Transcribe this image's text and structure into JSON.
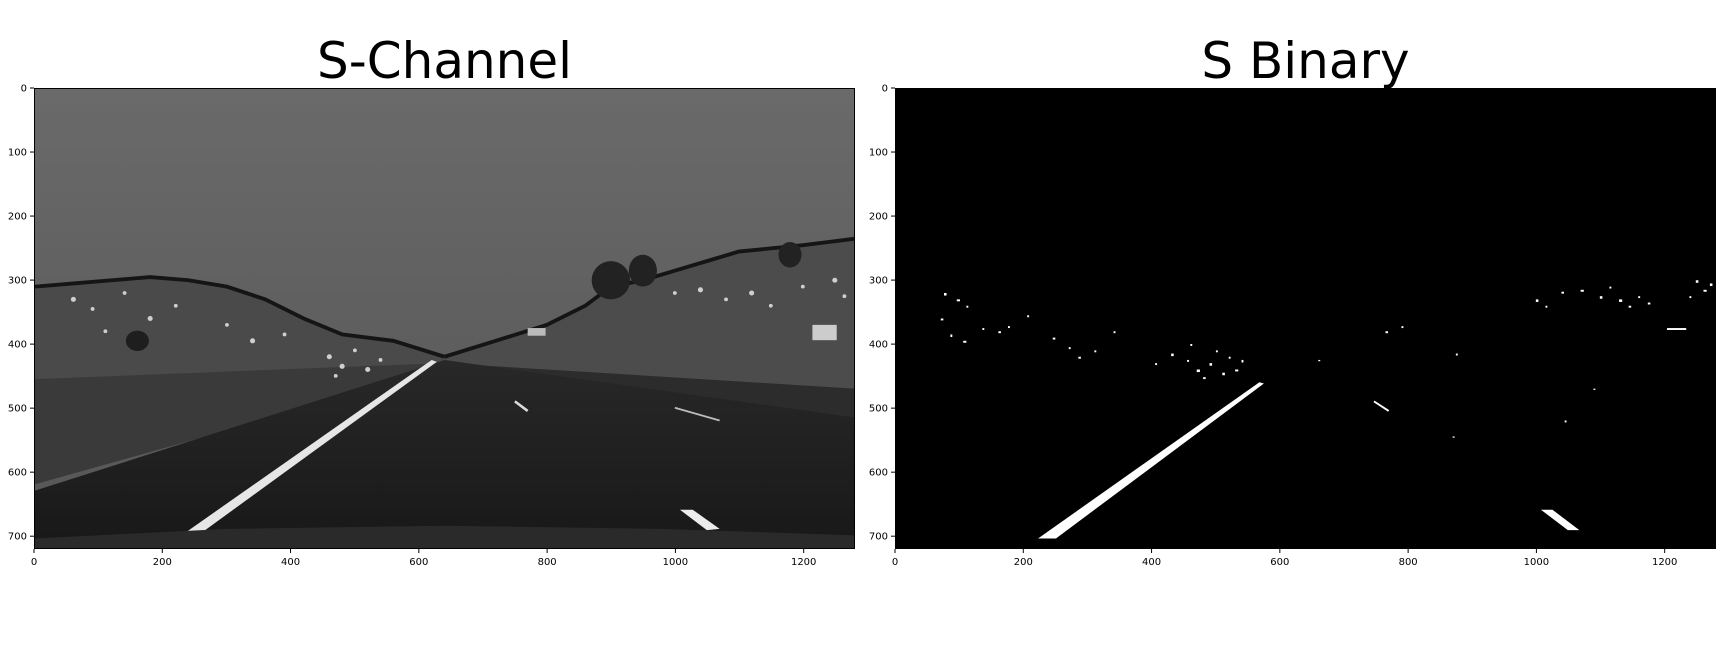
{
  "panels": {
    "left": {
      "title": "S-Channel",
      "image": "grayscale road image, s-channel",
      "x_ticks": [
        "0",
        "200",
        "400",
        "600",
        "800",
        "1000",
        "1200"
      ],
      "y_ticks": [
        "0",
        "100",
        "200",
        "300",
        "400",
        "500",
        "600",
        "700"
      ]
    },
    "right": {
      "title": "S Binary",
      "image": "black and white binary road mask",
      "x_ticks": [
        "0",
        "200",
        "400",
        "600",
        "800",
        "1000",
        "1200"
      ],
      "y_ticks": [
        "0",
        "100",
        "200",
        "300",
        "400",
        "500",
        "600",
        "700"
      ]
    }
  },
  "axis": {
    "xlim": [
      0,
      1280
    ],
    "ylim": [
      720,
      0
    ],
    "x_tick_values": [
      0,
      200,
      400,
      600,
      800,
      1000,
      1200
    ],
    "y_tick_values": [
      0,
      100,
      200,
      300,
      400,
      500,
      600,
      700
    ]
  },
  "colors": {
    "background": "#ffffff",
    "binary_bg": "#000000",
    "binary_fg": "#ffffff",
    "sky": "#5a5a5a",
    "road": "#1e1e1e",
    "shoulder": "#2a2a2a"
  }
}
